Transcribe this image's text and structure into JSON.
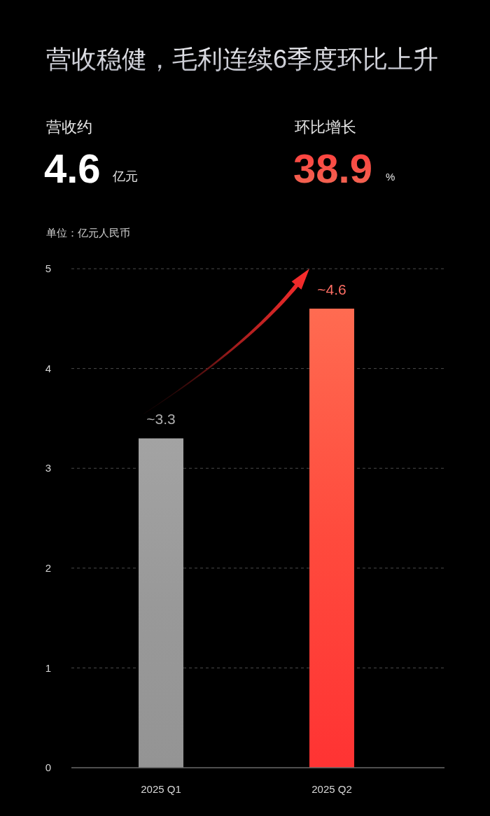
{
  "chart_data": {
    "type": "bar",
    "title": "营收稳健，毛利连续6季度环比上升",
    "ylabel": "单位：亿元人民币",
    "categories": [
      "2025 Q1",
      "2025 Q2"
    ],
    "values": [
      3.3,
      4.6
    ],
    "colors": [
      "#999999",
      "#ff4a3d"
    ],
    "value_labels": [
      "~3.3",
      "~4.6"
    ],
    "ylim": [
      0,
      5
    ],
    "yticks": [
      0,
      1,
      2,
      3,
      4,
      5
    ],
    "grid": "y",
    "annotations": [
      "营收约",
      "4.6",
      "亿元",
      "环比增长",
      "38.9",
      "%"
    ]
  }
}
